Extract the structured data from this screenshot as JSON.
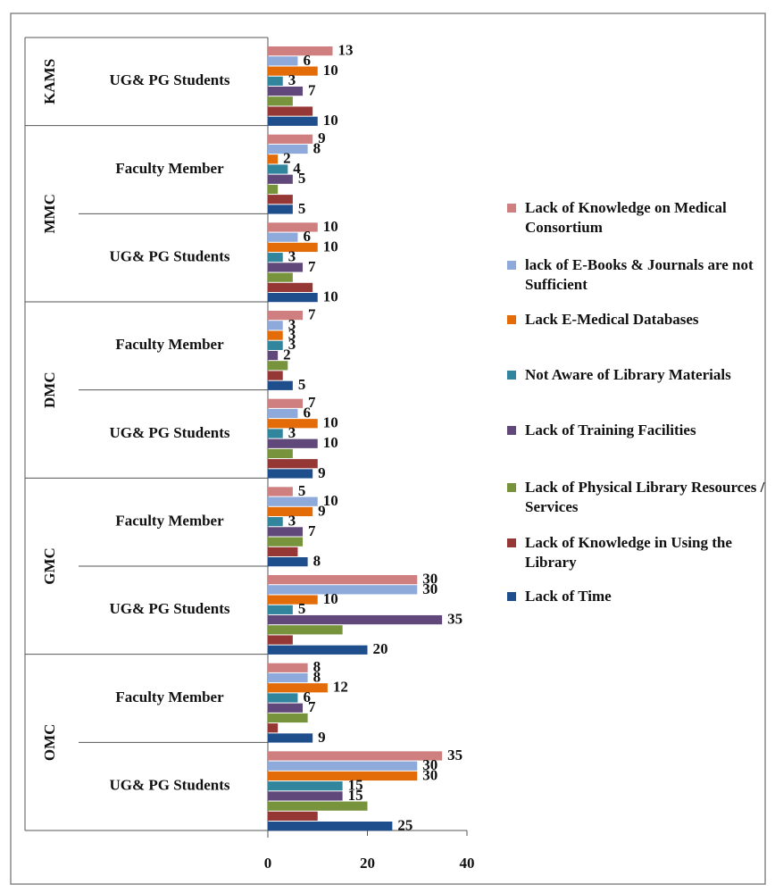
{
  "chart_data": {
    "type": "grouped_hbar",
    "groups": [
      {
        "name": "KAMS",
        "categories": [
          "UG& PG Students"
        ]
      },
      {
        "name": "MMC",
        "categories": [
          "Faculty Member",
          "UG& PG Students"
        ]
      },
      {
        "name": "DMC",
        "categories": [
          "Faculty Member",
          "UG& PG Students"
        ]
      },
      {
        "name": "GMC",
        "categories": [
          "Faculty Member",
          "UG& PG Students"
        ]
      },
      {
        "name": "OMC",
        "categories": [
          "Faculty Member",
          "UG& PG Students"
        ]
      }
    ],
    "series": [
      {
        "name": "Lack of Knowledge on Medical Consortium",
        "color": "#cf7f7f",
        "values": [
          13,
          9,
          10,
          7,
          7,
          5,
          30,
          8,
          35
        ],
        "value_labels": [
          "13",
          "9",
          "10",
          "7",
          "7",
          "5",
          "30",
          "8",
          "35"
        ]
      },
      {
        "name": "lack of E-Books & Journals are not Sufficient",
        "color": "#8eaadb",
        "values": [
          6,
          8,
          6,
          3,
          6,
          10,
          30,
          8,
          30
        ],
        "value_labels": [
          "6",
          "8",
          "6",
          "3",
          "6",
          "10",
          "30",
          "8",
          "30"
        ]
      },
      {
        "name": "Lack E-Medical Databases",
        "color": "#e36c09",
        "values": [
          10,
          2,
          10,
          3,
          10,
          9,
          10,
          12,
          30
        ],
        "value_labels": [
          "10",
          "2",
          "10",
          "3",
          "10",
          "9",
          "10",
          "12",
          "30"
        ]
      },
      {
        "name": "Not Aware of Library Materials",
        "color": "#31859c",
        "values": [
          3,
          4,
          3,
          3,
          3,
          3,
          5,
          6,
          15
        ],
        "value_labels": [
          "3",
          "4",
          "3",
          "3",
          "3",
          "3",
          "5",
          "6",
          "15"
        ]
      },
      {
        "name": "Lack of Training Facilities",
        "color": "#60497a",
        "values": [
          7,
          5,
          7,
          2,
          10,
          7,
          35,
          7,
          15
        ],
        "value_labels": [
          "7",
          "5",
          "7",
          "2",
          "10",
          "7",
          "35",
          "7",
          "15"
        ]
      },
      {
        "name": "Lack of Physical Library Resources / Services",
        "color": "#77933c",
        "values": [
          5,
          2,
          5,
          4,
          5,
          7,
          15,
          8,
          20
        ],
        "value_labels": [
          null,
          null,
          null,
          null,
          null,
          null,
          null,
          null,
          null
        ]
      },
      {
        "name": "Lack of Knowledge in Using the Library",
        "color": "#953735",
        "values": [
          9,
          5,
          9,
          3,
          10,
          6,
          5,
          2,
          10
        ],
        "value_labels": [
          null,
          null,
          null,
          null,
          null,
          null,
          null,
          null,
          null
        ]
      },
      {
        "name": "Lack of Time",
        "color": "#1f4e8c",
        "values": [
          10,
          5,
          10,
          5,
          9,
          8,
          20,
          9,
          25
        ],
        "value_labels": [
          "10",
          "5",
          "10",
          "5",
          "9",
          "8",
          "20",
          "9",
          "25"
        ]
      }
    ],
    "xlim": [
      0,
      40
    ],
    "xticks": [
      0,
      20,
      40
    ]
  }
}
